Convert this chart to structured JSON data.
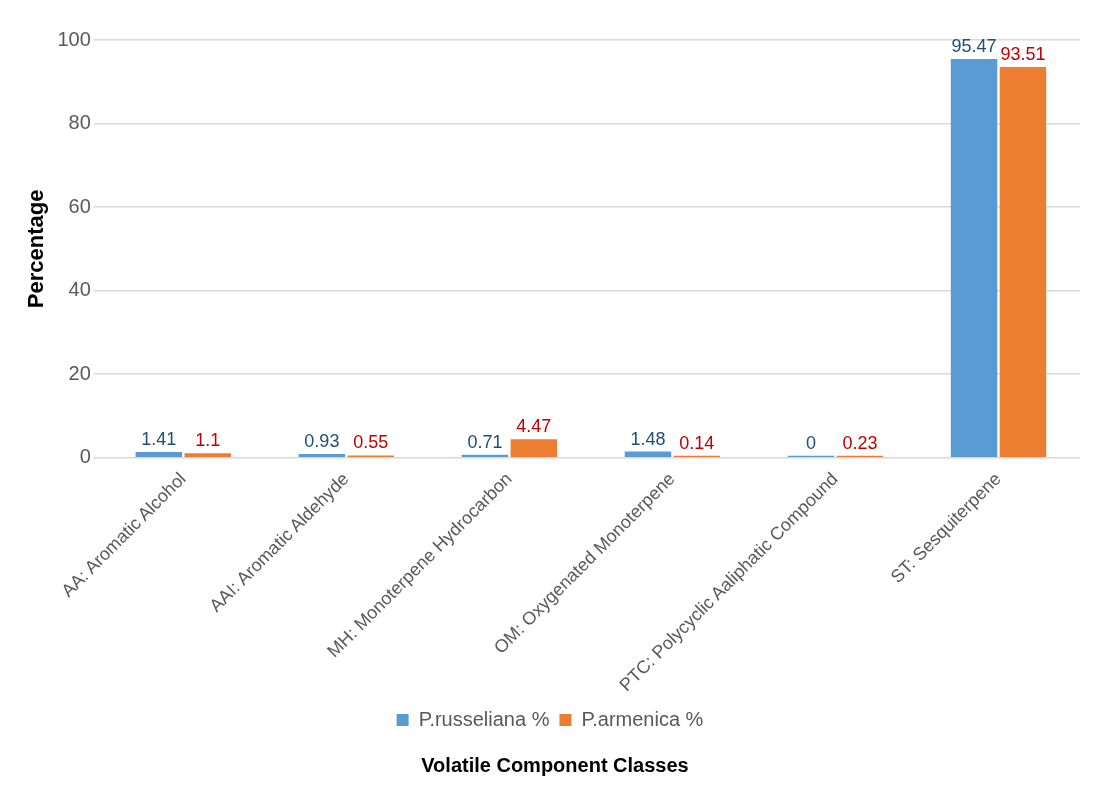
{
  "chart_data": {
    "type": "bar",
    "xlabel": "Volatile Component Classes",
    "ylabel": "Percentage",
    "categories": [
      "AA: Aromatic Alcohol",
      "AAI: Aromatic Aldehyde",
      "MH: Monoterpene Hydrocarbon",
      "OM: Oxygenated Monoterpene",
      "PTC: Polycyclic Aaliphatic Compound",
      "ST: Sesquiterpene"
    ],
    "series": [
      {
        "name": "P.russeliana %",
        "color": "#5b9bd5",
        "values": [
          1.41,
          0.93,
          0.71,
          1.48,
          0,
          95.47
        ]
      },
      {
        "name": "P.armenica %",
        "color": "#ed7d31",
        "values": [
          1.1,
          0.55,
          4.47,
          0.14,
          0.23,
          93.51
        ]
      }
    ],
    "ylim": [
      0,
      100
    ],
    "yticks": [
      0,
      20,
      40,
      60,
      80,
      100
    ],
    "grid": "y",
    "legend": "bottom",
    "data_labels": true
  }
}
